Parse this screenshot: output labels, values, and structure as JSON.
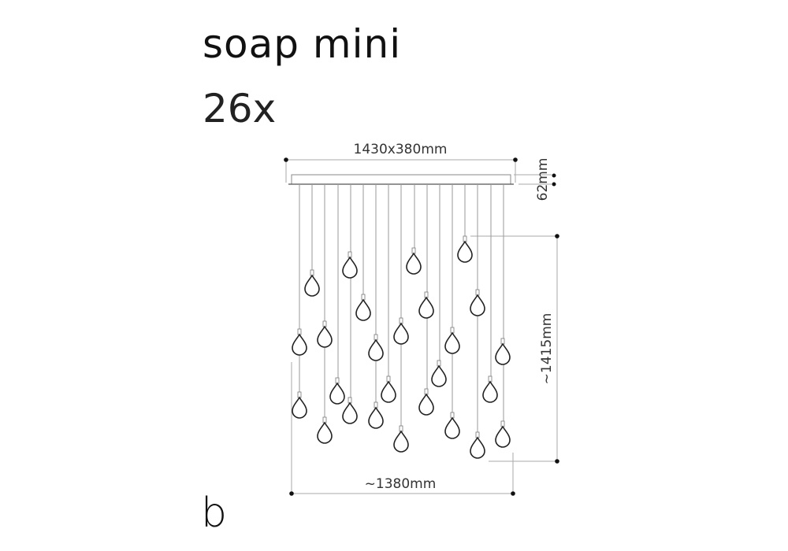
{
  "product": {
    "name": "soap mini",
    "count_label": "26x",
    "pendant_count": 26
  },
  "dimensions": {
    "canopy": "1430x380mm",
    "canopy_height": "62mm",
    "drop_height": "~1415mm",
    "spread_width": "~1380mm"
  },
  "brand": {
    "logo_letter": "b"
  },
  "colors": {
    "line": "#222222",
    "dimension_line": "#aaaaaa",
    "cable": "#888888"
  }
}
